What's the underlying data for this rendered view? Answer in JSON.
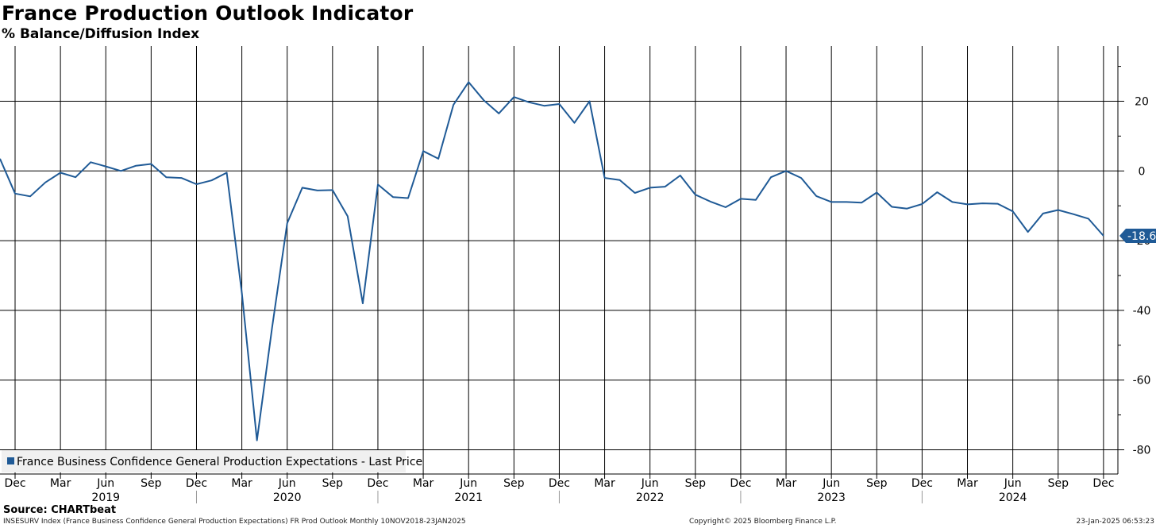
{
  "header": {
    "title": "France Production Outlook Indicator",
    "subtitle": "% Balance/Diffusion Index"
  },
  "footer": {
    "source": "Source: CHARTbeat",
    "description": "INSESURV Index (France Business Confidence General Production Expectations) FR Prod Outlook  Monthly 10NOV2018-23JAN2025",
    "copyright": "Copyright© 2025 Bloomberg Finance L.P.",
    "timestamp": "23-Jan-2025 06:53:23"
  },
  "chart_data": {
    "type": "line",
    "title": "France Production Outlook Indicator",
    "subtitle": "% Balance/Diffusion Index",
    "x_dates": [
      "2018-11",
      "2018-12",
      "2019-01",
      "2019-02",
      "2019-03",
      "2019-04",
      "2019-05",
      "2019-06",
      "2019-07",
      "2019-08",
      "2019-09",
      "2019-10",
      "2019-11",
      "2019-12",
      "2020-01",
      "2020-02",
      "2020-03",
      "2020-04",
      "2020-05",
      "2020-06",
      "2020-07",
      "2020-08",
      "2020-09",
      "2020-10",
      "2020-11",
      "2020-12",
      "2021-01",
      "2021-02",
      "2021-03",
      "2021-04",
      "2021-05",
      "2021-06",
      "2021-07",
      "2021-08",
      "2021-09",
      "2021-10",
      "2021-11",
      "2021-12",
      "2022-01",
      "2022-02",
      "2022-03",
      "2022-04",
      "2022-05",
      "2022-06",
      "2022-07",
      "2022-08",
      "2022-09",
      "2022-10",
      "2022-11",
      "2022-12",
      "2023-01",
      "2023-02",
      "2023-03",
      "2023-04",
      "2023-05",
      "2023-06",
      "2023-07",
      "2023-08",
      "2023-09",
      "2023-10",
      "2023-11",
      "2023-12",
      "2024-01",
      "2024-02",
      "2024-03",
      "2024-04",
      "2024-05",
      "2024-06",
      "2024-07",
      "2024-08",
      "2024-09",
      "2024-10",
      "2024-11",
      "2024-12"
    ],
    "series": [
      {
        "name": "France Business Confidence General Production Expectations - Last Price",
        "color": "#1f5a96",
        "values": [
          3.5,
          -6.5,
          -7.3,
          -3.3,
          -0.5,
          -1.8,
          2.5,
          1.3,
          0.0,
          1.5,
          2.0,
          -1.8,
          -2.0,
          -3.8,
          -2.7,
          -0.5,
          -35.0,
          -77.3,
          -45.0,
          -15.0,
          -4.8,
          -5.6,
          -5.5,
          -13.0,
          -38.0,
          -3.9,
          -7.5,
          -7.8,
          5.7,
          3.5,
          19.0,
          25.5,
          20.3,
          16.5,
          21.2,
          19.7,
          18.7,
          19.2,
          13.8,
          20.0,
          -2.0,
          -2.6,
          -6.3,
          -4.8,
          -4.5,
          -1.3,
          -6.8,
          -8.8,
          -10.4,
          -8.0,
          -8.3,
          -1.8,
          0.0,
          -2.0,
          -7.2,
          -8.9,
          -8.9,
          -9.1,
          -6.2,
          -10.3,
          -10.8,
          -9.5,
          -6.1,
          -8.9,
          -9.6,
          -9.3,
          -9.4,
          -11.6,
          -17.5,
          -12.2,
          -11.2,
          -12.4,
          -13.7,
          -18.6
        ]
      }
    ],
    "last_value_label": "-18.6",
    "legend": {
      "text": "France Business Confidence General Production Expectations - Last Price",
      "placement": "bottom-left"
    },
    "y_axis": {
      "min": -85,
      "max": 35,
      "ticks": [
        20,
        0,
        -20,
        -40,
        -60,
        -80
      ],
      "tick_labels": [
        "20",
        "0",
        "-20",
        "-40",
        "-60",
        "-80"
      ],
      "position": "right"
    },
    "x_axis": {
      "month_ticks": [
        {
          "date": "2018-12",
          "label": "Dec"
        },
        {
          "date": "2019-03",
          "label": "Mar"
        },
        {
          "date": "2019-06",
          "label": "Jun"
        },
        {
          "date": "2019-09",
          "label": "Sep"
        },
        {
          "date": "2019-12",
          "label": "Dec"
        },
        {
          "date": "2020-03",
          "label": "Mar"
        },
        {
          "date": "2020-06",
          "label": "Jun"
        },
        {
          "date": "2020-09",
          "label": "Sep"
        },
        {
          "date": "2020-12",
          "label": "Dec"
        },
        {
          "date": "2021-03",
          "label": "Mar"
        },
        {
          "date": "2021-06",
          "label": "Jun"
        },
        {
          "date": "2021-09",
          "label": "Sep"
        },
        {
          "date": "2021-12",
          "label": "Dec"
        },
        {
          "date": "2022-03",
          "label": "Mar"
        },
        {
          "date": "2022-06",
          "label": "Jun"
        },
        {
          "date": "2022-09",
          "label": "Sep"
        },
        {
          "date": "2022-12",
          "label": "Dec"
        },
        {
          "date": "2023-03",
          "label": "Mar"
        },
        {
          "date": "2023-06",
          "label": "Jun"
        },
        {
          "date": "2023-09",
          "label": "Sep"
        },
        {
          "date": "2023-12",
          "label": "Dec"
        },
        {
          "date": "2024-03",
          "label": "Mar"
        },
        {
          "date": "2024-06",
          "label": "Jun"
        },
        {
          "date": "2024-09",
          "label": "Sep"
        },
        {
          "date": "2024-12",
          "label": "Dec"
        }
      ],
      "year_labels": [
        {
          "date": "2019-06",
          "label": "2019"
        },
        {
          "date": "2020-06",
          "label": "2020"
        },
        {
          "date": "2021-06",
          "label": "2021"
        },
        {
          "date": "2022-06",
          "label": "2022"
        },
        {
          "date": "2023-06",
          "label": "2023"
        },
        {
          "date": "2024-06",
          "label": "2024"
        }
      ],
      "year_boundaries": [
        "2019-12",
        "2020-12",
        "2021-12",
        "2022-12",
        "2023-12"
      ]
    },
    "grid": true
  }
}
